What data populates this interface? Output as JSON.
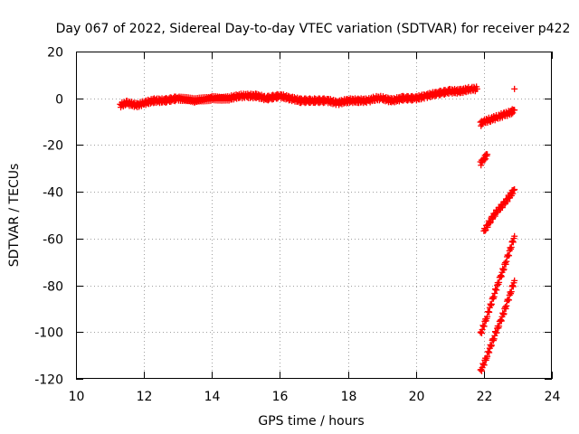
{
  "chart_data": {
    "type": "scatter",
    "title": "Day 067 of 2022, Sidereal Day-to-day VTEC variation (SDTVAR) for receiver p422",
    "xlabel": "GPS time / hours",
    "ylabel": "SDTVAR / TECUs",
    "xlim": [
      10,
      24
    ],
    "ylim": [
      -120,
      20
    ],
    "xticks": [
      "10",
      "12",
      "14",
      "16",
      "18",
      "20",
      "22",
      "24"
    ],
    "yticks": [
      "20",
      "0",
      "-20",
      "-40",
      "-60",
      "-80",
      "-100",
      "-120"
    ],
    "grid": true,
    "marker": "plus",
    "color": "#ff0000",
    "series": [
      {
        "points": [
          [
            11.3,
            -3
          ],
          [
            11.5,
            -2
          ],
          [
            11.8,
            -3
          ],
          [
            12.0,
            -2
          ],
          [
            12.3,
            -1
          ],
          [
            12.6,
            -1
          ],
          [
            13.0,
            0
          ],
          [
            13.5,
            -1
          ],
          [
            14.0,
            0
          ],
          [
            14.5,
            0
          ],
          [
            14.8,
            1
          ],
          [
            15.0,
            1
          ],
          [
            15.3,
            1
          ],
          [
            15.6,
            0
          ],
          [
            16.0,
            1
          ],
          [
            16.3,
            0
          ],
          [
            16.6,
            -1
          ],
          [
            17.0,
            -1
          ],
          [
            17.4,
            -1
          ],
          [
            17.7,
            -2
          ],
          [
            18.0,
            -1
          ],
          [
            18.3,
            -1
          ],
          [
            18.6,
            -1
          ],
          [
            18.8,
            0
          ],
          [
            19.0,
            0
          ],
          [
            19.3,
            -1
          ],
          [
            19.6,
            0
          ],
          [
            20.0,
            0
          ],
          [
            20.3,
            1
          ],
          [
            20.6,
            2
          ],
          [
            21.0,
            3
          ],
          [
            21.3,
            3
          ],
          [
            21.6,
            4
          ],
          [
            21.8,
            4
          ]
        ]
      },
      {
        "points": [
          [
            21.9,
            -11
          ],
          [
            22.0,
            -10
          ],
          [
            22.2,
            -9
          ],
          [
            22.4,
            -8
          ],
          [
            22.6,
            -7
          ],
          [
            22.8,
            -6
          ],
          [
            22.9,
            -5
          ]
        ]
      },
      {
        "points": [
          [
            21.9,
            -28
          ],
          [
            22.0,
            -26
          ],
          [
            22.1,
            -24
          ]
        ]
      },
      {
        "points": [
          [
            22.0,
            -57
          ],
          [
            22.2,
            -52
          ],
          [
            22.4,
            -48
          ],
          [
            22.6,
            -45
          ],
          [
            22.8,
            -41
          ],
          [
            22.9,
            -39
          ]
        ]
      },
      {
        "points": [
          [
            21.9,
            -101
          ],
          [
            22.1,
            -93
          ],
          [
            22.3,
            -84
          ],
          [
            22.5,
            -76
          ],
          [
            22.7,
            -68
          ],
          [
            22.9,
            -59
          ]
        ]
      },
      {
        "points": [
          [
            21.9,
            -117
          ],
          [
            22.1,
            -110
          ],
          [
            22.3,
            -102
          ],
          [
            22.5,
            -95
          ],
          [
            22.7,
            -87
          ],
          [
            22.9,
            -78
          ]
        ]
      },
      {
        "points": [
          [
            22.9,
            4
          ]
        ]
      }
    ]
  }
}
